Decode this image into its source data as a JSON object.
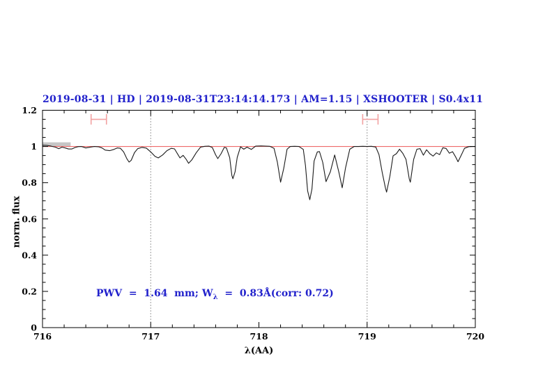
{
  "colors": {
    "accent_blue": "#2222cc",
    "continuum_red": "#ee6a6a",
    "marker_red": "#f2a2a2",
    "spectrum_black": "#1a1a1a",
    "band_gray": "#c6c6c6",
    "frame_black": "#000000",
    "dotted_line": "#3a3a3a"
  },
  "annotation": {
    "pre": "PWV  =  1.64  mm; W",
    "sub": "λ",
    "post": "  =  0.83Å(corr: 0.72)"
  },
  "chart_data": {
    "type": "line",
    "title": "2019-08-31 | HD | 2019-08-31T23:14:14.173 | AM=1.15 | XSHOOTER | S0.4x11",
    "xlabel": "λ(AA)",
    "ylabel": "norm. flux",
    "xlim": [
      716,
      720
    ],
    "ylim": [
      0,
      1.2
    ],
    "grid": "off",
    "legend": "none",
    "x_ticks": {
      "major": [
        716,
        717,
        718,
        719,
        720
      ],
      "labels": [
        "716",
        "717",
        "718",
        "719",
        "720"
      ],
      "minor_step": 0.2
    },
    "y_ticks": {
      "major": [
        0,
        0.2,
        0.4,
        0.6,
        0.8,
        1,
        1.2
      ],
      "labels": [
        "0",
        "0.2",
        "0.4",
        "0.6",
        "0.8",
        "1",
        "1.2"
      ],
      "minor_step": 0.05
    },
    "vlines": [
      {
        "x": 717,
        "style": "dotted"
      },
      {
        "x": 719,
        "style": "dotted"
      }
    ],
    "continuum_level": 1.0,
    "band": {
      "x0": 716.0,
      "x1": 716.26,
      "y_center": 1.012,
      "y_halfheight": 0.011
    },
    "range_markers": [
      {
        "x_center": 716.52,
        "x_halfwidth": 0.071,
        "y": 1.15,
        "cap_halfheight": 0.029
      },
      {
        "x_center": 719.03,
        "x_halfwidth": 0.071,
        "y": 1.15,
        "cap_halfheight": 0.029
      }
    ],
    "series": [
      {
        "name": "telluric-spectrum",
        "x": [
          716.0,
          716.04,
          716.08,
          716.12,
          716.15,
          716.18,
          716.21,
          716.24,
          716.27,
          716.3,
          716.33,
          716.36,
          716.4,
          716.44,
          716.48,
          716.52,
          716.55,
          716.58,
          716.62,
          716.66,
          716.69,
          716.72,
          716.75,
          716.78,
          716.8,
          716.82,
          716.85,
          716.88,
          716.92,
          716.96,
          717.0,
          717.04,
          717.07,
          717.11,
          717.15,
          717.19,
          717.22,
          717.25,
          717.27,
          717.3,
          717.33,
          717.35,
          717.38,
          717.42,
          717.46,
          717.5,
          717.54,
          717.57,
          717.6,
          717.62,
          717.65,
          717.68,
          717.7,
          717.73,
          717.75,
          717.76,
          717.78,
          717.8,
          717.83,
          717.86,
          717.89,
          717.93,
          717.97,
          718.02,
          718.06,
          718.1,
          718.14,
          718.17,
          718.2,
          718.23,
          718.26,
          718.29,
          718.33,
          718.37,
          718.41,
          718.43,
          718.45,
          718.47,
          718.49,
          718.51,
          718.54,
          718.56,
          718.59,
          718.62,
          718.66,
          718.7,
          718.74,
          718.77,
          718.8,
          718.84,
          718.88,
          718.92,
          718.96,
          719.0,
          719.04,
          719.08,
          719.11,
          719.14,
          719.17,
          719.18,
          719.21,
          719.24,
          719.27,
          719.3,
          719.33,
          719.36,
          719.39,
          719.4,
          719.43,
          719.46,
          719.49,
          719.52,
          719.55,
          719.58,
          719.61,
          719.64,
          719.67,
          719.7,
          719.73,
          719.76,
          719.79,
          719.82,
          719.84,
          719.87,
          719.9,
          719.94,
          719.97,
          720.0
        ],
        "y": [
          1.007,
          1.006,
          1.002,
          0.996,
          0.988,
          0.996,
          0.992,
          0.986,
          0.986,
          0.994,
          0.999,
          1.0,
          0.992,
          0.996,
          1.0,
          0.998,
          0.992,
          0.98,
          0.977,
          0.984,
          0.992,
          0.99,
          0.97,
          0.932,
          0.914,
          0.924,
          0.966,
          0.988,
          0.995,
          0.991,
          0.97,
          0.945,
          0.937,
          0.953,
          0.977,
          0.99,
          0.987,
          0.957,
          0.937,
          0.951,
          0.927,
          0.907,
          0.926,
          0.965,
          0.996,
          1.001,
          1.002,
          0.994,
          0.954,
          0.933,
          0.96,
          0.995,
          0.992,
          0.938,
          0.84,
          0.822,
          0.86,
          0.94,
          0.998,
          0.985,
          0.996,
          0.984,
          1.002,
          1.003,
          1.002,
          1.001,
          0.99,
          0.915,
          0.803,
          0.88,
          0.985,
          1.0,
          1.001,
          1.0,
          0.984,
          0.895,
          0.755,
          0.706,
          0.765,
          0.92,
          0.97,
          0.972,
          0.912,
          0.806,
          0.86,
          0.953,
          0.855,
          0.772,
          0.88,
          0.985,
          1.0,
          1.0,
          1.001,
          1.0,
          1.001,
          0.997,
          0.955,
          0.855,
          0.77,
          0.748,
          0.835,
          0.948,
          0.96,
          0.985,
          0.962,
          0.928,
          0.82,
          0.803,
          0.928,
          0.985,
          0.988,
          0.952,
          0.982,
          0.96,
          0.947,
          0.965,
          0.955,
          0.993,
          0.989,
          0.963,
          0.971,
          0.94,
          0.916,
          0.952,
          0.99,
          0.999,
          1.0,
          1.0
        ]
      }
    ]
  }
}
